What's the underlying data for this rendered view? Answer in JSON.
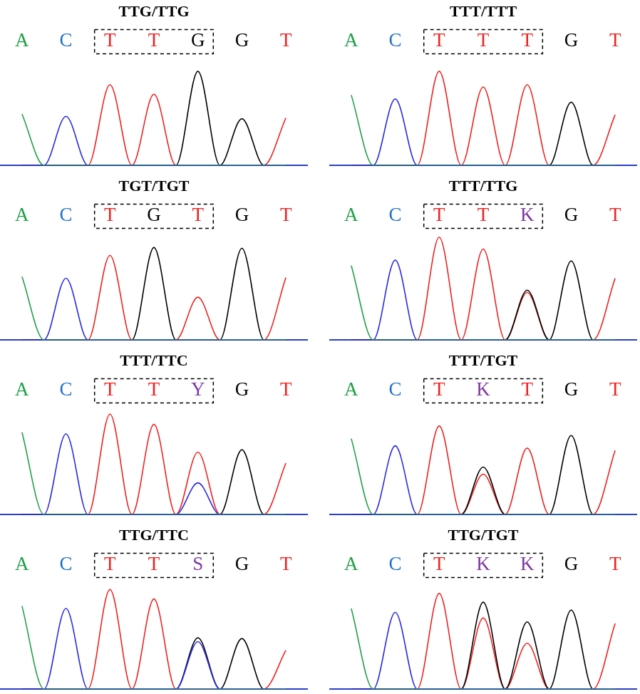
{
  "chart_data": [
    {
      "type": "line",
      "title": "TTG/TTG",
      "bases": [
        "A",
        "C",
        "T",
        "T",
        "G",
        "G",
        "T"
      ],
      "boxed_bases": [
        2,
        4
      ],
      "x": [
        0,
        0.5,
        1,
        1.5,
        2,
        2.5,
        3,
        3.5,
        4,
        4.5,
        5,
        5.5,
        6
      ],
      "xlim": [
        -0.5,
        6.5
      ],
      "ylim": [
        0,
        135
      ],
      "grid": false,
      "tick_labels": false,
      "series": [
        {
          "name": "A",
          "color": "#1fa046",
          "values": [
            65,
            0,
            0,
            0,
            0,
            0,
            0,
            0,
            0,
            0,
            0,
            0,
            0
          ]
        },
        {
          "name": "C",
          "color": "#2a2ae0",
          "values": [
            0,
            0,
            62,
            0,
            0,
            0,
            0,
            0,
            0,
            0,
            0,
            0,
            0
          ]
        },
        {
          "name": "G",
          "color": "#000000",
          "values": [
            0,
            0,
            0,
            0,
            0,
            0,
            0,
            0,
            119,
            0,
            59,
            0,
            0
          ]
        },
        {
          "name": "T",
          "color": "#ee2222",
          "values": [
            0,
            0,
            0,
            0,
            102,
            0,
            90,
            0,
            0,
            0,
            0,
            0,
            60
          ]
        }
      ]
    },
    {
      "type": "line",
      "title": "TTT/TTT",
      "bases": [
        "A",
        "C",
        "T",
        "T",
        "T",
        "G",
        "T"
      ],
      "boxed_bases": [
        2,
        4
      ],
      "x": [
        0,
        0.5,
        1,
        1.5,
        2,
        2.5,
        3,
        3.5,
        4,
        4.5,
        5,
        5.5,
        6
      ],
      "xlim": [
        -0.5,
        6.5
      ],
      "ylim": [
        0,
        135
      ],
      "grid": false,
      "tick_labels": false,
      "series": [
        {
          "name": "A",
          "color": "#1fa046",
          "values": [
            89,
            0,
            0,
            0,
            0,
            0,
            0,
            0,
            0,
            0,
            0,
            0,
            0
          ]
        },
        {
          "name": "C",
          "color": "#2a2ae0",
          "values": [
            0,
            0,
            84,
            0,
            0,
            0,
            0,
            0,
            0,
            0,
            0,
            0,
            0
          ]
        },
        {
          "name": "G",
          "color": "#000000",
          "values": [
            0,
            0,
            0,
            0,
            0,
            0,
            0,
            0,
            0,
            0,
            80,
            0,
            0
          ]
        },
        {
          "name": "T",
          "color": "#ee2222",
          "values": [
            0,
            0,
            0,
            0,
            119,
            0,
            99,
            0,
            102,
            0,
            0,
            0,
            64
          ]
        }
      ]
    },
    {
      "type": "line",
      "title": "TGT/TGT",
      "bases": [
        "A",
        "C",
        "T",
        "G",
        "T",
        "G",
        "T"
      ],
      "boxed_bases": [
        2,
        4
      ],
      "x": [
        0,
        0.5,
        1,
        1.5,
        2,
        2.5,
        3,
        3.5,
        4,
        4.5,
        5,
        5.5,
        6
      ],
      "xlim": [
        -0.5,
        6.5
      ],
      "ylim": [
        0,
        135
      ],
      "grid": false,
      "tick_labels": false,
      "series": [
        {
          "name": "A",
          "color": "#1fa046",
          "values": [
            80,
            0,
            0,
            0,
            0,
            0,
            0,
            0,
            0,
            0,
            0,
            0,
            0
          ]
        },
        {
          "name": "C",
          "color": "#2a2ae0",
          "values": [
            0,
            0,
            78,
            0,
            0,
            0,
            0,
            0,
            0,
            0,
            0,
            0,
            0
          ]
        },
        {
          "name": "G",
          "color": "#000000",
          "values": [
            0,
            0,
            0,
            0,
            0,
            0,
            117,
            0,
            0,
            0,
            116,
            0,
            0
          ]
        },
        {
          "name": "T",
          "color": "#ee2222",
          "values": [
            0,
            0,
            0,
            0,
            107,
            0,
            0,
            0,
            54,
            0,
            0,
            0,
            79
          ]
        }
      ]
    },
    {
      "type": "line",
      "title": "TTT/TTG",
      "bases": [
        "A",
        "C",
        "T",
        "T",
        "K",
        "G",
        "T"
      ],
      "boxed_bases": [
        2,
        4
      ],
      "x": [
        0,
        0.5,
        1,
        1.5,
        2,
        2.5,
        3,
        3.5,
        4,
        4.5,
        5,
        5.5,
        6
      ],
      "xlim": [
        -0.5,
        6.5
      ],
      "ylim": [
        0,
        135
      ],
      "grid": false,
      "tick_labels": false,
      "series": [
        {
          "name": "A",
          "color": "#1fa046",
          "values": [
            94,
            0,
            0,
            0,
            0,
            0,
            0,
            0,
            0,
            0,
            0,
            0,
            0
          ]
        },
        {
          "name": "C",
          "color": "#2a2ae0",
          "values": [
            0,
            0,
            101,
            0,
            0,
            0,
            0,
            0,
            0,
            0,
            0,
            0,
            0
          ]
        },
        {
          "name": "G",
          "color": "#000000",
          "values": [
            0,
            0,
            0,
            0,
            0,
            0,
            0,
            0,
            63,
            0,
            100,
            0,
            0
          ]
        },
        {
          "name": "T",
          "color": "#ee2222",
          "values": [
            0,
            0,
            0,
            0,
            130,
            0,
            115,
            0,
            60,
            0,
            0,
            0,
            78
          ]
        }
      ]
    },
    {
      "type": "line",
      "title": "TTT/TTC",
      "bases": [
        "A",
        "C",
        "T",
        "T",
        "Y",
        "G",
        "T"
      ],
      "boxed_bases": [
        2,
        4
      ],
      "x": [
        0,
        0.5,
        1,
        1.5,
        2,
        2.5,
        3,
        3.5,
        4,
        4.5,
        5,
        5.5,
        6
      ],
      "xlim": [
        -0.5,
        6.5
      ],
      "ylim": [
        0,
        135
      ],
      "grid": false,
      "tick_labels": false,
      "series": [
        {
          "name": "A",
          "color": "#1fa046",
          "values": [
            104,
            0,
            0,
            0,
            0,
            0,
            0,
            0,
            0,
            0,
            0,
            0,
            0
          ]
        },
        {
          "name": "C",
          "color": "#2a2ae0",
          "values": [
            0,
            0,
            102,
            0,
            0,
            0,
            0,
            0,
            40,
            0,
            0,
            0,
            0
          ]
        },
        {
          "name": "G",
          "color": "#000000",
          "values": [
            0,
            0,
            0,
            0,
            0,
            0,
            0,
            0,
            0,
            0,
            82,
            0,
            0
          ]
        },
        {
          "name": "T",
          "color": "#ee2222",
          "values": [
            0,
            0,
            0,
            0,
            127,
            0,
            114,
            0,
            79,
            0,
            0,
            0,
            65
          ]
        }
      ]
    },
    {
      "type": "line",
      "title": "TTT/TGT",
      "bases": [
        "A",
        "C",
        "T",
        "K",
        "T",
        "G",
        "T"
      ],
      "boxed_bases": [
        2,
        4
      ],
      "x": [
        0,
        0.5,
        1,
        1.5,
        2,
        2.5,
        3,
        3.5,
        4,
        4.5,
        5,
        5.5,
        6
      ],
      "xlim": [
        -0.5,
        6.5
      ],
      "ylim": [
        0,
        135
      ],
      "grid": false,
      "tick_labels": false,
      "series": [
        {
          "name": "A",
          "color": "#1fa046",
          "values": [
            96,
            0,
            0,
            0,
            0,
            0,
            0,
            0,
            0,
            0,
            0,
            0,
            0
          ]
        },
        {
          "name": "C",
          "color": "#2a2ae0",
          "values": [
            0,
            0,
            87,
            0,
            0,
            0,
            0,
            0,
            0,
            0,
            0,
            0,
            0
          ]
        },
        {
          "name": "G",
          "color": "#000000",
          "values": [
            0,
            0,
            0,
            0,
            0,
            0,
            60,
            0,
            0,
            0,
            100,
            0,
            0
          ]
        },
        {
          "name": "T",
          "color": "#ee2222",
          "values": [
            0,
            0,
            0,
            0,
            112,
            0,
            51,
            0,
            84,
            0,
            0,
            0,
            81
          ]
        }
      ]
    },
    {
      "type": "line",
      "title": "TTG/TTC",
      "bases": [
        "A",
        "C",
        "T",
        "T",
        "S",
        "G",
        "T"
      ],
      "boxed_bases": [
        2,
        4
      ],
      "x": [
        0,
        0.5,
        1,
        1.5,
        2,
        2.5,
        3,
        3.5,
        4,
        4.5,
        5,
        5.5,
        6
      ],
      "xlim": [
        -0.5,
        6.5
      ],
      "ylim": [
        0,
        135
      ],
      "grid": false,
      "tick_labels": false,
      "series": [
        {
          "name": "A",
          "color": "#1fa046",
          "values": [
            105,
            0,
            0,
            0,
            0,
            0,
            0,
            0,
            0,
            0,
            0,
            0,
            0
          ]
        },
        {
          "name": "C",
          "color": "#2a2ae0",
          "values": [
            0,
            0,
            102,
            0,
            0,
            0,
            0,
            0,
            60,
            0,
            0,
            0,
            0
          ]
        },
        {
          "name": "G",
          "color": "#000000",
          "values": [
            0,
            0,
            0,
            0,
            0,
            0,
            0,
            0,
            65,
            0,
            64,
            0,
            0
          ]
        },
        {
          "name": "T",
          "color": "#ee2222",
          "values": [
            0,
            0,
            0,
            0,
            126,
            0,
            114,
            0,
            0,
            0,
            0,
            0,
            49
          ]
        }
      ]
    },
    {
      "type": "line",
      "title": "TTG/TGT",
      "bases": [
        "A",
        "C",
        "T",
        "K",
        "K",
        "G",
        "T"
      ],
      "boxed_bases": [
        2,
        4
      ],
      "x": [
        0,
        0.5,
        1,
        1.5,
        2,
        2.5,
        3,
        3.5,
        4,
        4.5,
        5,
        5.5,
        6
      ],
      "xlim": [
        -0.5,
        6.5
      ],
      "ylim": [
        0,
        135
      ],
      "grid": false,
      "tick_labels": false,
      "series": [
        {
          "name": "A",
          "color": "#1fa046",
          "values": [
            102,
            0,
            0,
            0,
            0,
            0,
            0,
            0,
            0,
            0,
            0,
            0,
            0
          ]
        },
        {
          "name": "C",
          "color": "#2a2ae0",
          "values": [
            0,
            0,
            97,
            0,
            0,
            0,
            0,
            0,
            0,
            0,
            0,
            0,
            0
          ]
        },
        {
          "name": "G",
          "color": "#000000",
          "values": [
            0,
            0,
            0,
            0,
            0,
            0,
            110,
            0,
            85,
            0,
            100,
            0,
            0
          ]
        },
        {
          "name": "T",
          "color": "#ee2222",
          "values": [
            0,
            0,
            0,
            0,
            121,
            0,
            90,
            0,
            58,
            0,
            0,
            0,
            83
          ]
        }
      ]
    }
  ]
}
